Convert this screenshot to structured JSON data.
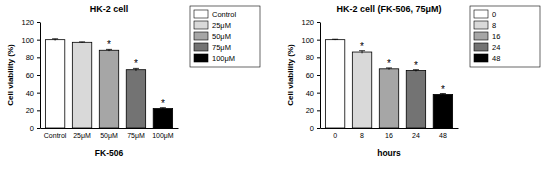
{
  "chart_data": [
    {
      "type": "bar",
      "title": "HK-2 cell",
      "x_label": "FK-506",
      "y_label": "Cell viability (%)",
      "categories": [
        "Control",
        "25μM",
        "50μM",
        "75μM",
        "100μM"
      ],
      "values": [
        100,
        97,
        88,
        66,
        22
      ],
      "errors": [
        1,
        0.5,
        1,
        1.5,
        1
      ],
      "colors": [
        "#ffffff",
        "#d9d9d9",
        "#a6a6a6",
        "#737373",
        "#000000"
      ],
      "ylim": [
        0,
        120
      ],
      "yticks": [
        0,
        20,
        40,
        60,
        80,
        100,
        120
      ],
      "legend": "right",
      "annotations": [
        {
          "text": "*",
          "category": "50μM"
        },
        {
          "text": "*",
          "category": "75μM"
        },
        {
          "text": "*",
          "category": "100μM"
        }
      ]
    },
    {
      "type": "bar",
      "title": "HK-2 cell (FK-506, 75μM)",
      "x_label": "hours",
      "y_label": "Cell viability (%)",
      "categories": [
        "0",
        "8",
        "16",
        "24",
        "48"
      ],
      "values": [
        100,
        86,
        67,
        65,
        38
      ],
      "errors": [
        0.5,
        1.5,
        1,
        1,
        1
      ],
      "colors": [
        "#ffffff",
        "#d9d9d9",
        "#a6a6a6",
        "#737373",
        "#000000"
      ],
      "ylim": [
        0,
        120
      ],
      "yticks": [
        0,
        20,
        40,
        60,
        80,
        100,
        120
      ],
      "legend": "right",
      "annotations": [
        {
          "text": "*",
          "category": "8"
        },
        {
          "text": "*",
          "category": "16"
        },
        {
          "text": "*",
          "category": "24"
        },
        {
          "text": "*",
          "category": "48"
        }
      ]
    }
  ]
}
